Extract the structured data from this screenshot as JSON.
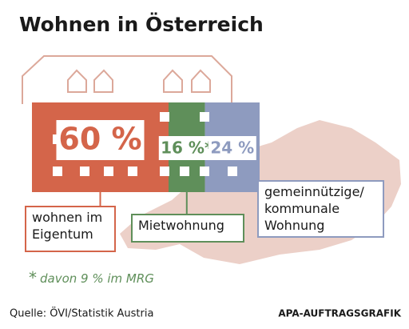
{
  "chart_data": {
    "type": "stacked-house",
    "title": "Wohnen in Österreich",
    "categories": [
      "wohnen im\nEigentum",
      "Mietwohnung",
      "gemeinnützige/\nkommunale\nWohnung"
    ],
    "values": [
      60,
      16,
      24
    ],
    "value_labels": [
      "60 %",
      "16 %*",
      "24 %"
    ],
    "colors": [
      "#d4654a",
      "#5f8f5a",
      "#8e9bbf"
    ],
    "footnote_marker": "*",
    "footnote": "davon 9 % im MRG",
    "source": "Quelle: ÖVI/Statistik Austria",
    "credit": "APA-AUFTRAGSGRAFIK"
  }
}
